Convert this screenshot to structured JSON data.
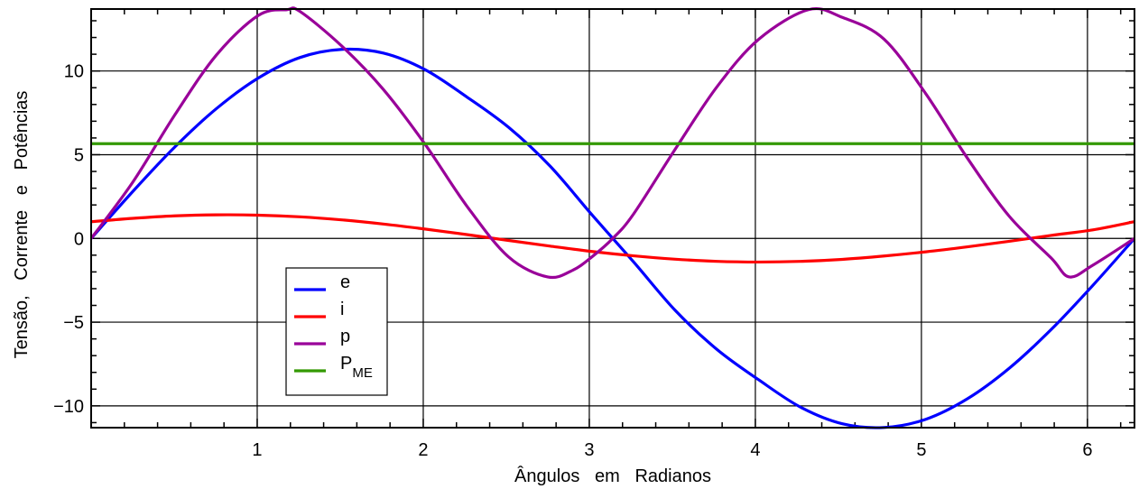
{
  "chart_data": {
    "type": "line",
    "title": "",
    "xlabel": "Ângulos   em   Radianos",
    "ylabel": "Tensão,   Corrente   e   Potências",
    "xlim": [
      0,
      6.2832
    ],
    "ylim": [
      -11.3,
      13.7
    ],
    "xticks": [
      1,
      2,
      3,
      4,
      5,
      6
    ],
    "xtick_labels": [
      "1",
      "2",
      "3",
      "4",
      "5",
      "6"
    ],
    "yticks": [
      -10,
      -5,
      0,
      5,
      10
    ],
    "ytick_labels": [
      "−10",
      "−5",
      "0",
      "5",
      "10"
    ],
    "grid": true,
    "legend_position": "lower-left",
    "series": [
      {
        "name": "e",
        "color": "#0000ff",
        "x": [
          0,
          0.2513,
          0.5027,
          0.754,
          1.0053,
          1.2566,
          1.508,
          1.7593,
          2.0106,
          2.2619,
          2.5133,
          2.7646,
          3.0159,
          3.2673,
          3.5186,
          3.7699,
          4.0212,
          4.2726,
          4.5239,
          4.7752,
          5.0265,
          5.2779,
          5.5292,
          5.7805,
          6.0319,
          6.2832
        ],
        "y": [
          0,
          2.81,
          5.45,
          7.75,
          9.57,
          10.8,
          11.29,
          11.07,
          10.08,
          8.45,
          6.64,
          4.31,
          1.41,
          -1.41,
          -4.31,
          -6.64,
          -8.45,
          -10.08,
          -11.07,
          -11.29,
          -10.8,
          -9.57,
          -7.75,
          -5.45,
          -2.81,
          0
        ]
      },
      {
        "name": "i",
        "color": "#ff0000",
        "x": [
          0,
          0.2513,
          0.5027,
          0.754,
          1.0053,
          1.2566,
          1.508,
          1.7593,
          2.0106,
          2.2619,
          2.5133,
          2.7646,
          3.0159,
          3.2673,
          3.5186,
          3.7699,
          4.0212,
          4.2726,
          4.5239,
          4.7752,
          5.0265,
          5.2779,
          5.5292,
          5.7805,
          6.0319,
          6.2832
        ],
        "y": [
          1.0,
          1.2,
          1.35,
          1.41,
          1.39,
          1.29,
          1.11,
          0.86,
          0.56,
          0.23,
          -0.12,
          -0.46,
          -0.78,
          -1.04,
          -1.24,
          -1.37,
          -1.41,
          -1.37,
          -1.25,
          -1.05,
          -0.8,
          -0.5,
          -0.17,
          0.18,
          0.51,
          1.0
        ]
      },
      {
        "name": "p",
        "color": "#990099",
        "x": [
          0,
          0.2513,
          0.5027,
          0.754,
          1.0053,
          1.1781,
          1.2566,
          1.508,
          1.7593,
          2.0106,
          2.2619,
          2.5133,
          2.7489,
          2.9,
          3.0159,
          3.1416,
          3.2673,
          3.5186,
          3.7699,
          4.0212,
          4.3197,
          4.5239,
          4.7752,
          5.0265,
          5.2779,
          5.5292,
          5.7805,
          5.8905,
          6.0319,
          6.2832
        ],
        "y": [
          0,
          3.37,
          7.36,
          10.95,
          13.31,
          13.66,
          13.56,
          11.5,
          8.9,
          5.63,
          1.94,
          -1.1,
          -2.3,
          -1.9,
          -1.1,
          0,
          1.47,
          5.35,
          9.07,
          11.9,
          13.66,
          13.2,
          11.9,
          8.64,
          4.78,
          1.32,
          -1.16,
          -2.3,
          -1.6,
          0
        ]
      },
      {
        "name": "P",
        "name_sub": "ME",
        "color": "#339900",
        "x": [
          0,
          6.2832
        ],
        "y": [
          5.66,
          5.66
        ]
      }
    ]
  }
}
